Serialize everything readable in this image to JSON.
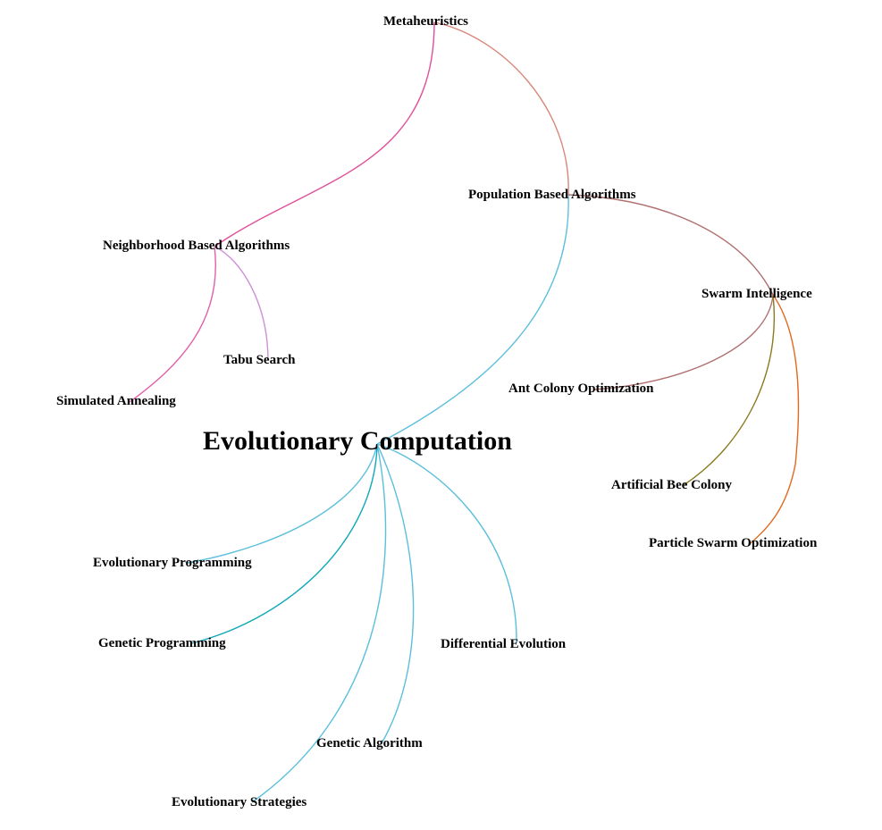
{
  "nodes": {
    "metaheuristics": "Metaheuristics",
    "population": "Population Based Algorithms",
    "neighborhood": "Neighborhood Based Algorithms",
    "swarm": "Swarm Intelligence",
    "tabu": "Tabu Search",
    "annealing": "Simulated Annealing",
    "aco": "Ant Colony Optimization",
    "evo_comp": "Evolutionary Computation",
    "abc": "Artificial Bee Colony",
    "pso": "Particle Swarm Optimization",
    "evo_prog": "Evolutionary Programming",
    "gen_prog": "Genetic Programming",
    "diff_evo": "Differential Evolution",
    "gen_alg": "Genetic Algorithm",
    "evo_strat": "Evolutionary Strategies"
  },
  "edges": [
    {
      "from": "metaheuristics",
      "to": "neighborhood",
      "color": "#e0509a"
    },
    {
      "from": "metaheuristics",
      "to": "population",
      "color": "#d9877a"
    },
    {
      "from": "population",
      "to": "evo_comp",
      "color": "#5bbfdd"
    },
    {
      "from": "population",
      "to": "swarm",
      "color": "#b07070"
    },
    {
      "from": "neighborhood",
      "to": "annealing",
      "color": "#e060a8"
    },
    {
      "from": "neighborhood",
      "to": "tabu",
      "color": "#d090d8"
    },
    {
      "from": "swarm",
      "to": "aco",
      "color": "#b07070"
    },
    {
      "from": "swarm",
      "to": "abc",
      "color": "#8a7a20"
    },
    {
      "from": "swarm",
      "to": "pso",
      "color": "#e06a20"
    },
    {
      "from": "evo_comp",
      "to": "evo_prog",
      "color": "#5bbfdd"
    },
    {
      "from": "evo_comp",
      "to": "gen_prog",
      "color": "#10a8b8"
    },
    {
      "from": "evo_comp",
      "to": "evo_strat",
      "color": "#5bbfdd"
    },
    {
      "from": "evo_comp",
      "to": "gen_alg",
      "color": "#5bbfdd"
    },
    {
      "from": "evo_comp",
      "to": "diff_evo",
      "color": "#5bbfdd"
    }
  ]
}
